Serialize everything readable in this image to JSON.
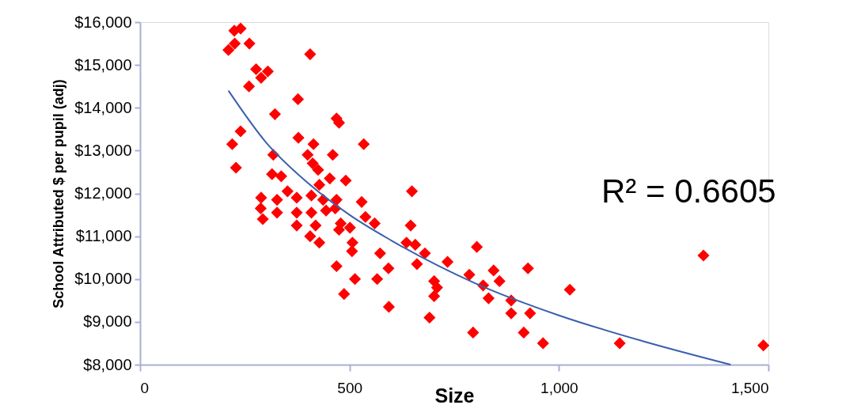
{
  "chart_data": {
    "type": "scatter",
    "xlabel": "Size",
    "ylabel": "School Attributed $ per pupil (adj)",
    "xlim": [
      0,
      1500
    ],
    "xticks": [
      0,
      500,
      {
        "value": 1000,
        "label": "1,000"
      },
      {
        "value": 1500,
        "label": "1,500"
      }
    ],
    "ylim": [
      8000,
      16000
    ],
    "yticks": [
      {
        "value": 8000,
        "label": "$8,000"
      },
      {
        "value": 9000,
        "label": "$9,000"
      },
      {
        "value": 10000,
        "label": "$10,000"
      },
      {
        "value": 11000,
        "label": "$11,000"
      },
      {
        "value": 12000,
        "label": "$12,000"
      },
      {
        "value": 13000,
        "label": "$13,000"
      },
      {
        "value": 14000,
        "label": "$14,000"
      },
      {
        "value": 15000,
        "label": "$15,000"
      },
      {
        "value": 16000,
        "label": "$16,000"
      }
    ],
    "grid": false,
    "marker": "diamond",
    "annotations": [
      "R² = 0.6605"
    ],
    "series": [
      {
        "color": "#ff0000",
        "x": [
          240,
          225,
          261,
          211,
          226,
          406,
          277,
          305,
          289,
          260,
          377,
          322,
          469,
          475,
          240,
          220,
          378,
          414,
          534,
          318,
          400,
          460,
          229,
          315,
          337,
          412,
          425,
          453,
          491,
          428,
          352,
          374,
          289,
          327,
          409,
          437,
          469,
          529,
          288,
          327,
          293,
          374,
          374,
          409,
          419,
          406,
          428,
          444,
          466,
          479,
          475,
          501,
          507,
          506,
          538,
          560,
          573,
          469,
          513,
          566,
          487,
          649,
          646,
          636,
          657,
          680,
          661,
          593,
          594,
          702,
          709,
          702,
          691,
          734,
          804,
          786,
          844,
          819,
          858,
          832,
          926,
          886,
          886,
          931,
          795,
          916,
          962,
          1026,
          1345,
          1145,
          1488
        ],
        "values": [
          15850,
          15800,
          15500,
          15350,
          15500,
          15250,
          14900,
          14850,
          14700,
          14500,
          14200,
          13850,
          13750,
          13650,
          13450,
          13150,
          13300,
          13150,
          13150,
          12900,
          12900,
          12900,
          12600,
          12450,
          12400,
          12700,
          12550,
          12350,
          12300,
          12200,
          12050,
          11900,
          11900,
          11850,
          11950,
          11850,
          11850,
          11800,
          11650,
          11550,
          11400,
          11550,
          11250,
          11550,
          11250,
          11000,
          10850,
          11600,
          11650,
          11300,
          11150,
          11200,
          10850,
          10650,
          11450,
          11300,
          10600,
          10300,
          10000,
          10000,
          9650,
          12050,
          11250,
          10850,
          10800,
          10600,
          10350,
          10250,
          9350,
          9950,
          9800,
          9600,
          9100,
          10400,
          10750,
          10100,
          10200,
          9850,
          9950,
          9550,
          10250,
          9500,
          9200,
          9200,
          8750,
          8750,
          8500,
          9750,
          10550,
          8500,
          8450
        ]
      },
      {
        "type": "line",
        "color": "#3a5fad",
        "line_style": "solid",
        "marker": "none",
        "x": [
          211,
          300,
          400,
          500,
          600,
          800,
          1000,
          1200,
          1410
        ],
        "values": [
          14400,
          13200,
          12250,
          11500,
          10900,
          9900,
          9150,
          8550,
          8000
        ]
      }
    ]
  }
}
